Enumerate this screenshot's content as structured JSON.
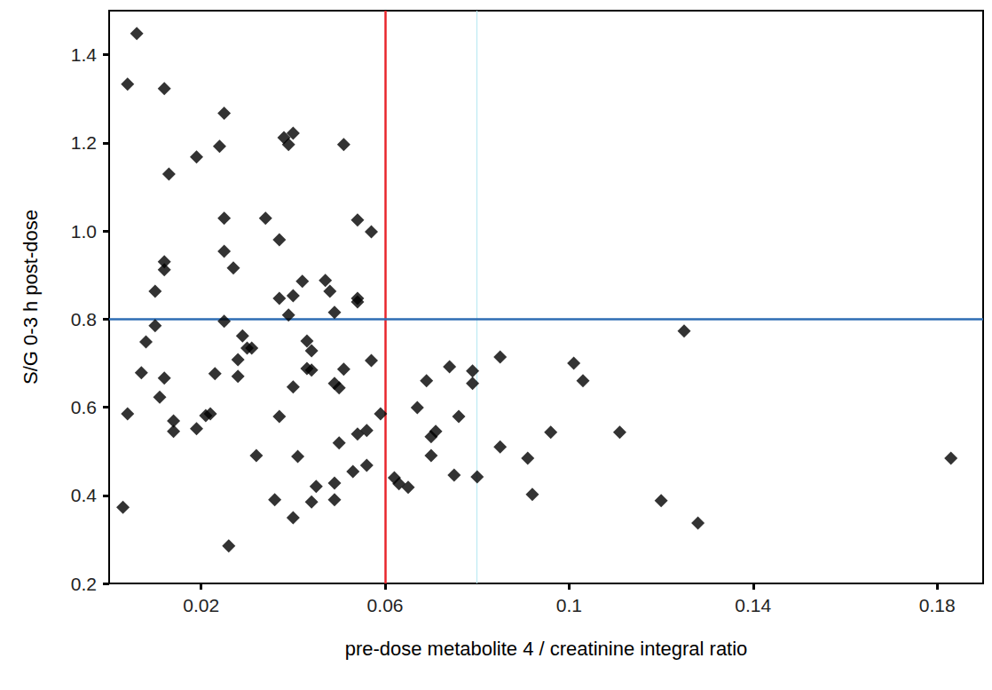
{
  "chart_data": {
    "type": "scatter",
    "x_label": "pre-dose metabolite 4 / creatinine integral ratio",
    "y_label": "S/G 0-3 h post-dose",
    "color": "#000000",
    "marker": "diamond",
    "grid": false,
    "xlim": [
      0,
      0.19
    ],
    "xticks": [
      0.02,
      0.06,
      0.1,
      0.14,
      0.18
    ],
    "ylim": [
      0.2,
      1.5
    ],
    "yticks": [
      0.2,
      0.4,
      0.6,
      0.8,
      {
        "value": 1,
        "label": "1.0"
      },
      1.2,
      1.4
    ],
    "reference_lines": [
      {
        "axis": "x",
        "value": 0.08,
        "color": "#b5e8f2"
      },
      {
        "axis": "y",
        "value": 0.8,
        "color": "#b5e8f2"
      },
      {
        "axis": "x",
        "value": 0.06,
        "color": "#e8262c"
      },
      {
        "axis": "y",
        "value": 0.8,
        "color": "#2e6db4"
      }
    ],
    "x": [
      0.006,
      0.004,
      0.012,
      0.025,
      0.013,
      0.019,
      0.024,
      0.038,
      0.04,
      0.039,
      0.051,
      0.025,
      0.034,
      0.054,
      0.057,
      0.025,
      0.037,
      0.027,
      0.012,
      0.012,
      0.01,
      0.037,
      0.04,
      0.042,
      0.047,
      0.048,
      0.054,
      0.054,
      0.039,
      0.049,
      0.025,
      0.01,
      0.008,
      0.029,
      0.03,
      0.031,
      0.028,
      0.028,
      0.043,
      0.044,
      0.043,
      0.044,
      0.051,
      0.057,
      0.007,
      0.012,
      0.023,
      0.049,
      0.05,
      0.04,
      0.011,
      0.014,
      0.014,
      0.019,
      0.021,
      0.022,
      0.004,
      0.037,
      0.059,
      0.056,
      0.054,
      0.05,
      0.032,
      0.041,
      0.056,
      0.053,
      0.045,
      0.049,
      0.036,
      0.044,
      0.049,
      0.04,
      0.003,
      0.026,
      0.062,
      0.063,
      0.065,
      0.067,
      0.069,
      0.074,
      0.079,
      0.079,
      0.085,
      0.07,
      0.07,
      0.071,
      0.076,
      0.075,
      0.08,
      0.085,
      0.091,
      0.092,
      0.096,
      0.101,
      0.103,
      0.111,
      0.12,
      0.128,
      0.125,
      0.183
    ],
    "values": [
      1.448,
      1.333,
      1.323,
      1.267,
      1.129,
      1.168,
      1.192,
      1.212,
      1.222,
      1.196,
      1.196,
      1.029,
      1.029,
      1.025,
      0.998,
      0.954,
      0.98,
      0.916,
      0.93,
      0.912,
      0.863,
      0.847,
      0.853,
      0.886,
      0.888,
      0.863,
      0.847,
      0.839,
      0.809,
      0.815,
      0.795,
      0.785,
      0.748,
      0.762,
      0.734,
      0.734,
      0.708,
      0.67,
      0.75,
      0.728,
      0.688,
      0.684,
      0.686,
      0.706,
      0.678,
      0.666,
      0.676,
      0.654,
      0.644,
      0.646,
      0.623,
      0.569,
      0.545,
      0.551,
      0.581,
      0.585,
      0.585,
      0.579,
      0.585,
      0.547,
      0.539,
      0.519,
      0.49,
      0.488,
      0.468,
      0.454,
      0.42,
      0.428,
      0.39,
      0.385,
      0.39,
      0.349,
      0.373,
      0.285,
      0.44,
      0.426,
      0.418,
      0.599,
      0.66,
      0.692,
      0.682,
      0.654,
      0.714,
      0.49,
      0.533,
      0.545,
      0.579,
      0.446,
      0.442,
      0.51,
      0.484,
      0.402,
      0.543,
      0.7,
      0.66,
      0.543,
      0.388,
      0.337,
      0.773,
      0.484
    ]
  }
}
